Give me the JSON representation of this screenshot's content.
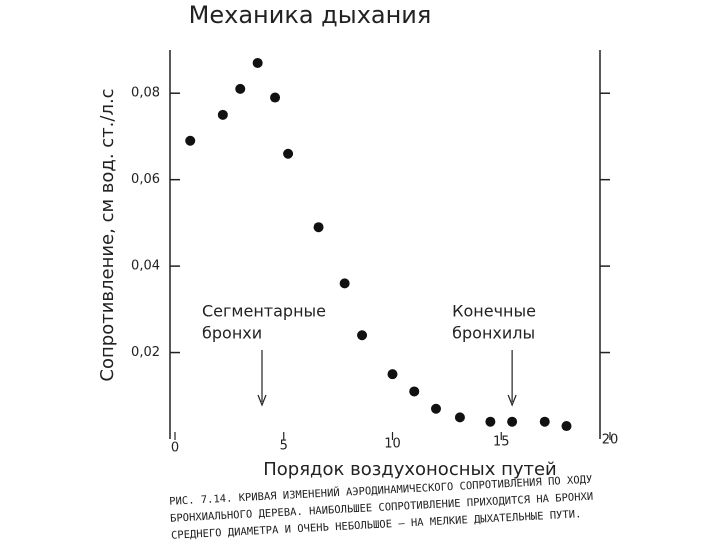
{
  "chart_data": {
    "type": "scatter",
    "title": "Механика дыхания",
    "y_label": "Сопротивление, см вод. ст./л.с",
    "x_label": "Порядок воздухоносных путей",
    "annotations": [
      {
        "lines": [
          "Сегментарные",
          "бронхи"
        ],
        "x": 4
      },
      {
        "lines": [
          "Конечные",
          "бронхилы"
        ],
        "x": 15.5
      }
    ],
    "caption": [
      "РИС. 7.14. КРИВАЯ ИЗМЕНЕНИЙ АЭРОДИНАМИЧЕСКОГО СОПРОТИВЛЕНИЯ ПО ХОДУ",
      "БРОНХИАЛЬНОГО ДЕРЕВА. НАИБОЛЬШЕЕ СОПРОТИВЛЕНИЕ ПРИХОДИТСЯ НА БРОНХИ",
      "СРЕДНЕГО ДИАМЕТРА И ОЧЕНЬ НЕБОЛЬШОЕ — НА МЕЛКИЕ ДЫХАТЕЛЬНЫЕ ПУТИ."
    ],
    "x": [
      0.7,
      2.2,
      3.0,
      3.8,
      4.6,
      5.2,
      6.6,
      7.8,
      8.6,
      10.0,
      11.0,
      12.0,
      13.1,
      14.5,
      15.5,
      17.0,
      18.0
    ],
    "values": [
      0.069,
      0.075,
      0.081,
      0.087,
      0.079,
      0.066,
      0.049,
      0.036,
      0.024,
      0.015,
      0.011,
      0.007,
      0.005,
      0.004,
      0.004,
      0.004,
      0.003
    ],
    "color": "#111111",
    "xlim": [
      0,
      20
    ],
    "xticks": [
      0,
      5,
      10,
      15,
      20
    ],
    "ylim": [
      0,
      0.09
    ],
    "yticks": [
      {
        "value": 0.02,
        "label": "0,02"
      },
      {
        "value": 0.04,
        "label": "0,04"
      },
      {
        "value": 0.06,
        "label": "0,06"
      },
      {
        "value": 0.08,
        "label": "0,08"
      }
    ]
  }
}
